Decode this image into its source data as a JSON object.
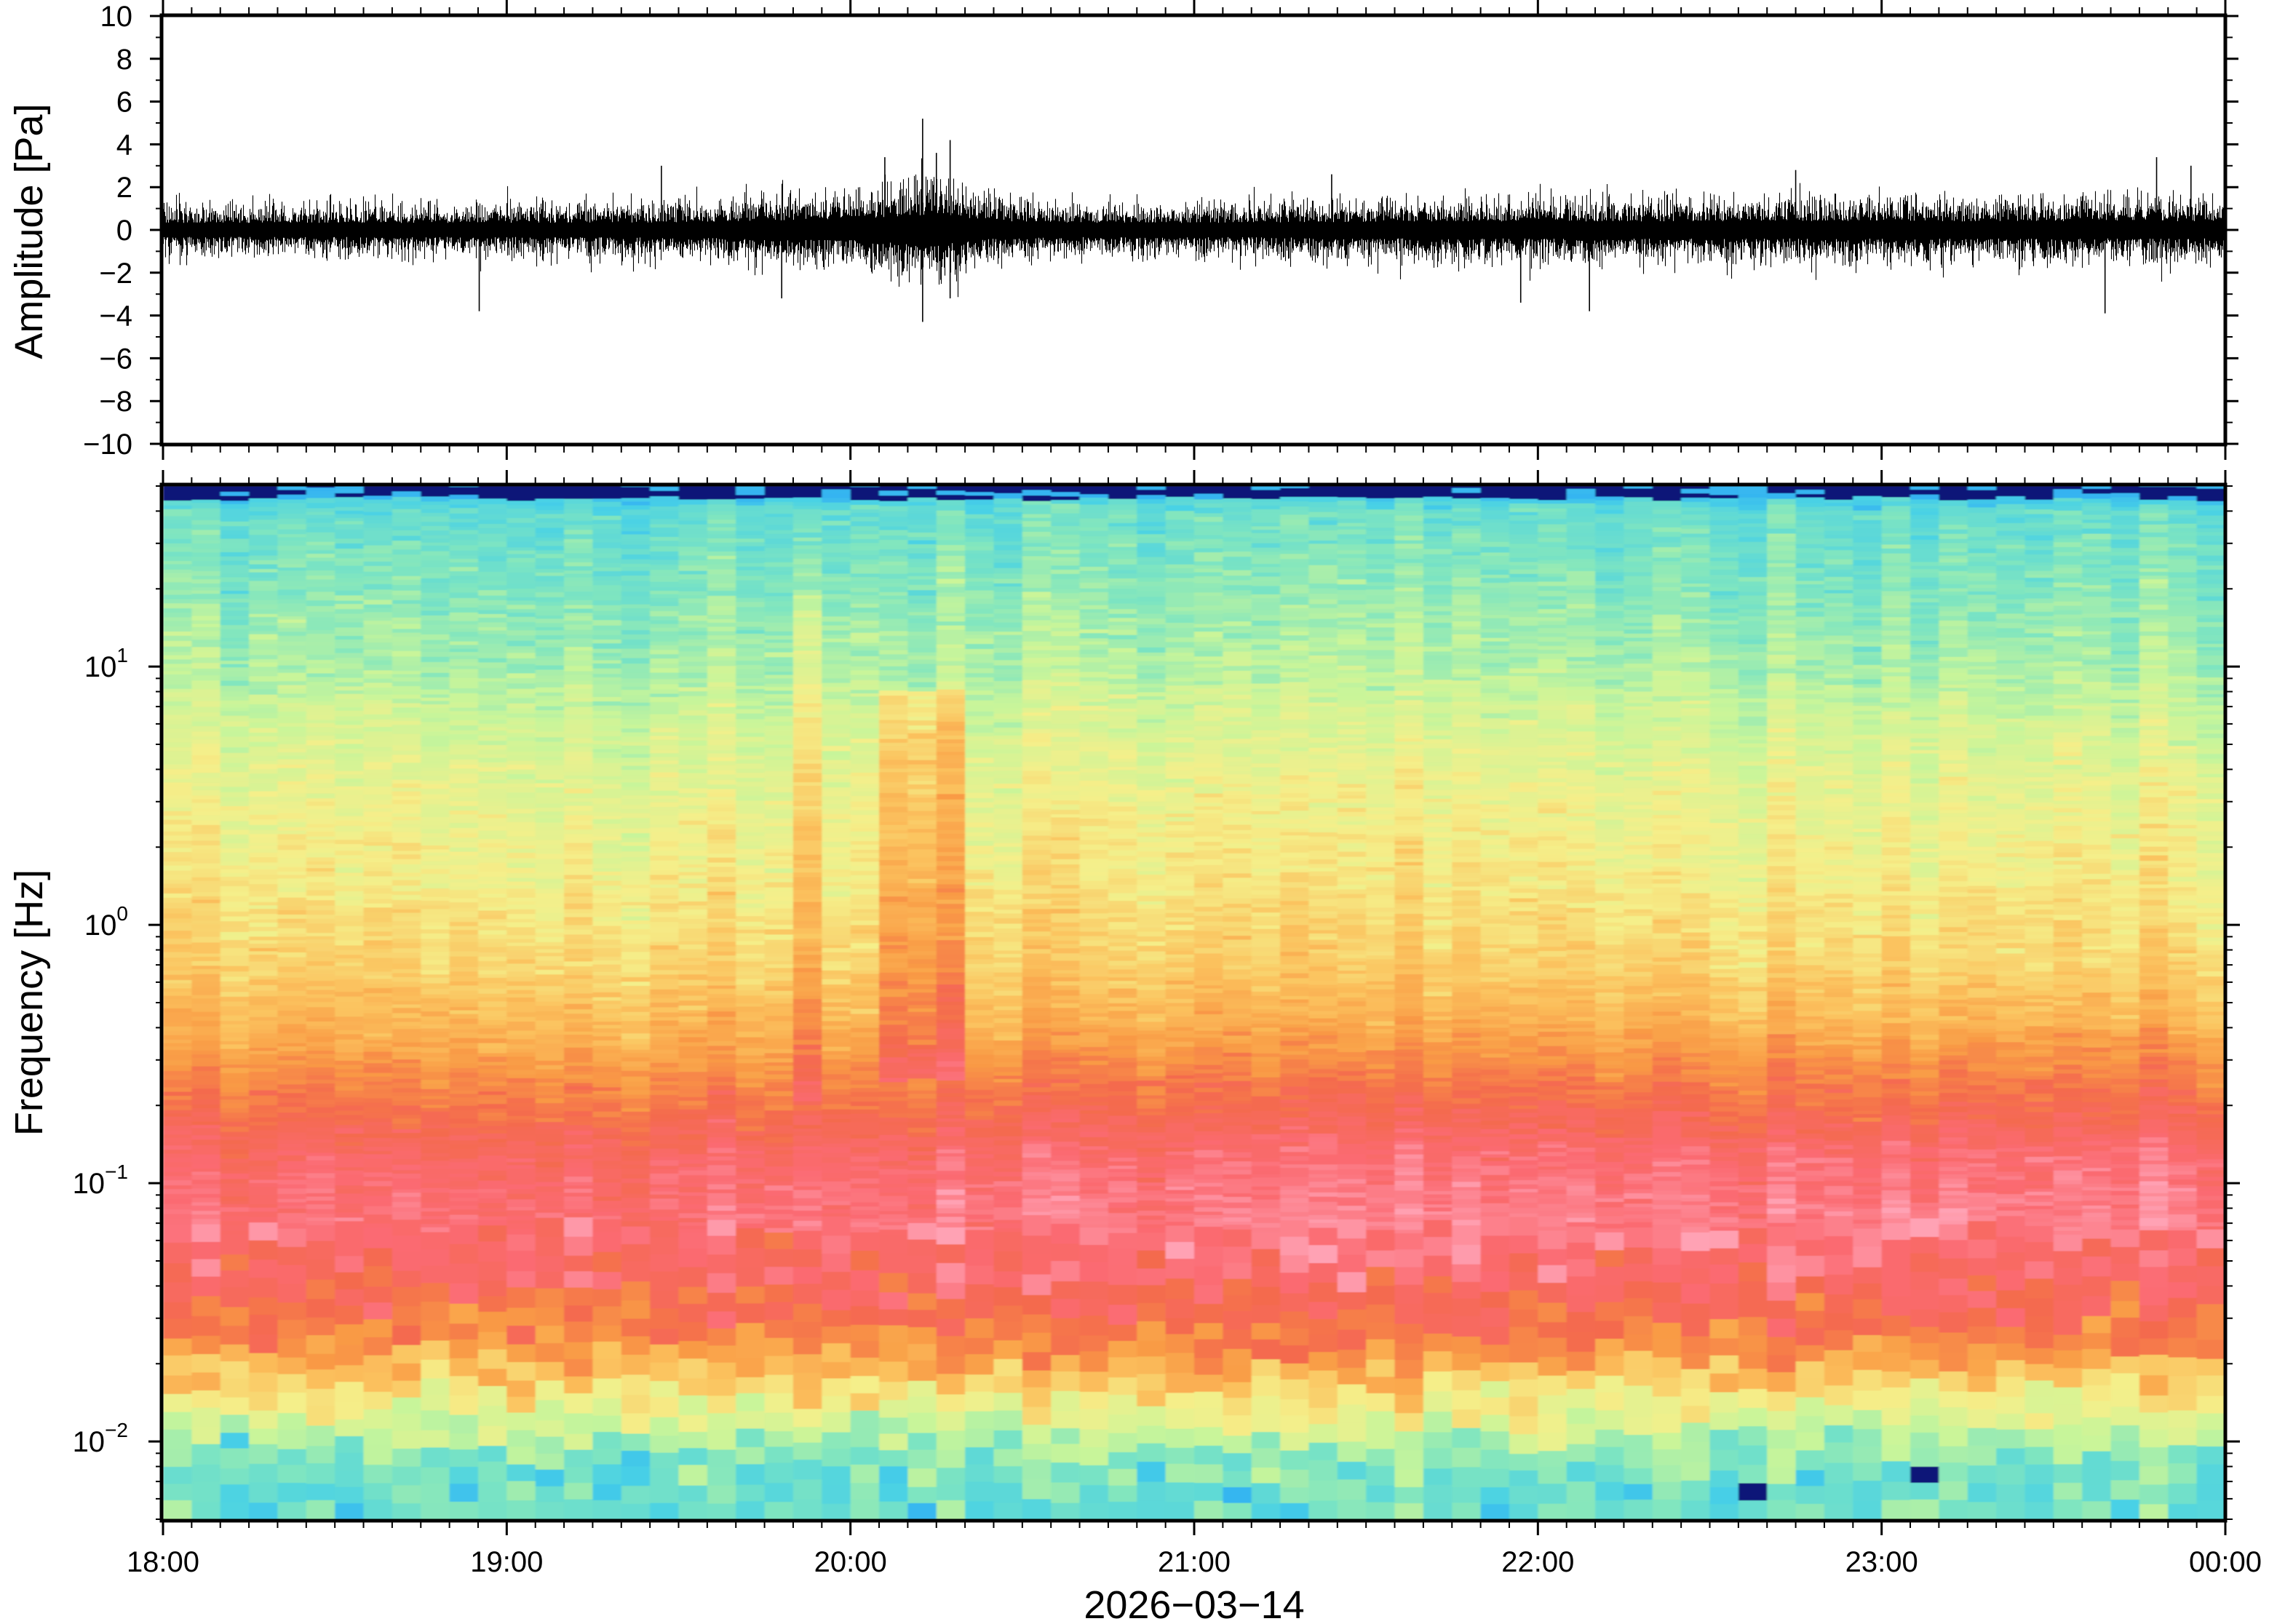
{
  "chart_data": [
    {
      "type": "line",
      "panel": "waveform",
      "ylabel": "Amplitude [Pa]",
      "ylim": [
        -10,
        10
      ],
      "yticks": [
        "10",
        "8",
        "6",
        "4",
        "2",
        "0",
        "−2",
        "−4",
        "−6",
        "−8",
        "−10"
      ],
      "ytick_values": [
        10,
        8,
        6,
        4,
        2,
        0,
        -2,
        -4,
        -6,
        -8,
        -10
      ],
      "xlim_hours": [
        18,
        24
      ],
      "noise_envelope": [
        {
          "t": 18.0,
          "amp": 1.3
        },
        {
          "t": 18.5,
          "amp": 1.3
        },
        {
          "t": 19.0,
          "amp": 1.3
        },
        {
          "t": 19.5,
          "amp": 1.4
        },
        {
          "t": 19.8,
          "amp": 1.8
        },
        {
          "t": 20.0,
          "amp": 1.9
        },
        {
          "t": 20.15,
          "amp": 2.5
        },
        {
          "t": 20.25,
          "amp": 2.8
        },
        {
          "t": 20.4,
          "amp": 1.6
        },
        {
          "t": 20.7,
          "amp": 1.3
        },
        {
          "t": 21.0,
          "amp": 1.3
        },
        {
          "t": 21.5,
          "amp": 1.5
        },
        {
          "t": 22.0,
          "amp": 1.6
        },
        {
          "t": 22.5,
          "amp": 1.6
        },
        {
          "t": 23.0,
          "amp": 1.6
        },
        {
          "t": 23.5,
          "amp": 1.6
        },
        {
          "t": 24.0,
          "amp": 1.6
        }
      ],
      "peaks": [
        {
          "t": 18.92,
          "value": -3.8
        },
        {
          "t": 19.45,
          "value": 3.0
        },
        {
          "t": 19.8,
          "value": -3.2
        },
        {
          "t": 20.1,
          "value": 3.4
        },
        {
          "t": 20.21,
          "value": 5.2
        },
        {
          "t": 20.21,
          "value": -4.3
        },
        {
          "t": 20.25,
          "value": 3.6
        },
        {
          "t": 20.29,
          "value": 4.2
        },
        {
          "t": 20.29,
          "value": -3.2
        },
        {
          "t": 21.4,
          "value": 2.6
        },
        {
          "t": 21.95,
          "value": -3.4
        },
        {
          "t": 22.15,
          "value": -3.8
        },
        {
          "t": 22.75,
          "value": 2.8
        },
        {
          "t": 23.65,
          "value": -3.9
        },
        {
          "t": 23.8,
          "value": 3.4
        },
        {
          "t": 23.9,
          "value": 3.0
        }
      ]
    },
    {
      "type": "heatmap",
      "panel": "spectrogram",
      "ylabel": "Frequency [Hz]",
      "yscale": "log",
      "ylim_hz": [
        0.005,
        50
      ],
      "yticks": [
        {
          "value": 0.01,
          "base": "10",
          "exp": "−2"
        },
        {
          "value": 0.1,
          "base": "10",
          "exp": "−1"
        },
        {
          "value": 1,
          "base": "10",
          "exp": "0"
        },
        {
          "value": 10,
          "base": "10",
          "exp": "1"
        }
      ],
      "xlabel": "2026−03−14",
      "xlim_hours": [
        18,
        24
      ],
      "xticks": [
        {
          "t": 18,
          "label": "18:00"
        },
        {
          "t": 19,
          "label": "19:00"
        },
        {
          "t": 20,
          "label": "20:00"
        },
        {
          "t": 21,
          "label": "21:00"
        },
        {
          "t": 22,
          "label": "22:00"
        },
        {
          "t": 23,
          "label": "23:00"
        },
        {
          "t": 24,
          "label": "00:00"
        }
      ],
      "colormap": [
        "#1e90ff",
        "#48d1e6",
        "#7fe5c0",
        "#c8f59a",
        "#f5ef8a",
        "#fbc25e",
        "#f99a45",
        "#f46a4e",
        "#fb6b72",
        "#ffa3b5"
      ],
      "profile": [
        {
          "freq": 0.005,
          "level": 0.18
        },
        {
          "freq": 0.008,
          "level": 0.22
        },
        {
          "freq": 0.012,
          "level": 0.38
        },
        {
          "freq": 0.018,
          "level": 0.55
        },
        {
          "freq": 0.025,
          "level": 0.7
        },
        {
          "freq": 0.04,
          "level": 0.82
        },
        {
          "freq": 0.07,
          "level": 0.9
        },
        {
          "freq": 0.12,
          "level": 0.86
        },
        {
          "freq": 0.2,
          "level": 0.75
        },
        {
          "freq": 0.35,
          "level": 0.62
        },
        {
          "freq": 0.7,
          "level": 0.52
        },
        {
          "freq": 1.5,
          "level": 0.46
        },
        {
          "freq": 4,
          "level": 0.4
        },
        {
          "freq": 10,
          "level": 0.3
        },
        {
          "freq": 20,
          "level": 0.24
        },
        {
          "freq": 40,
          "level": 0.18
        },
        {
          "freq": 50,
          "level": 0.05
        }
      ],
      "events": [
        {
          "t_start": 19.8,
          "t_end": 19.9,
          "freq_min": 0.2,
          "freq_max": 20,
          "boost": 0.08
        },
        {
          "t_start": 20.12,
          "t_end": 20.36,
          "freq_min": 0.25,
          "freq_max": 8,
          "boost": 0.15
        }
      ]
    }
  ]
}
